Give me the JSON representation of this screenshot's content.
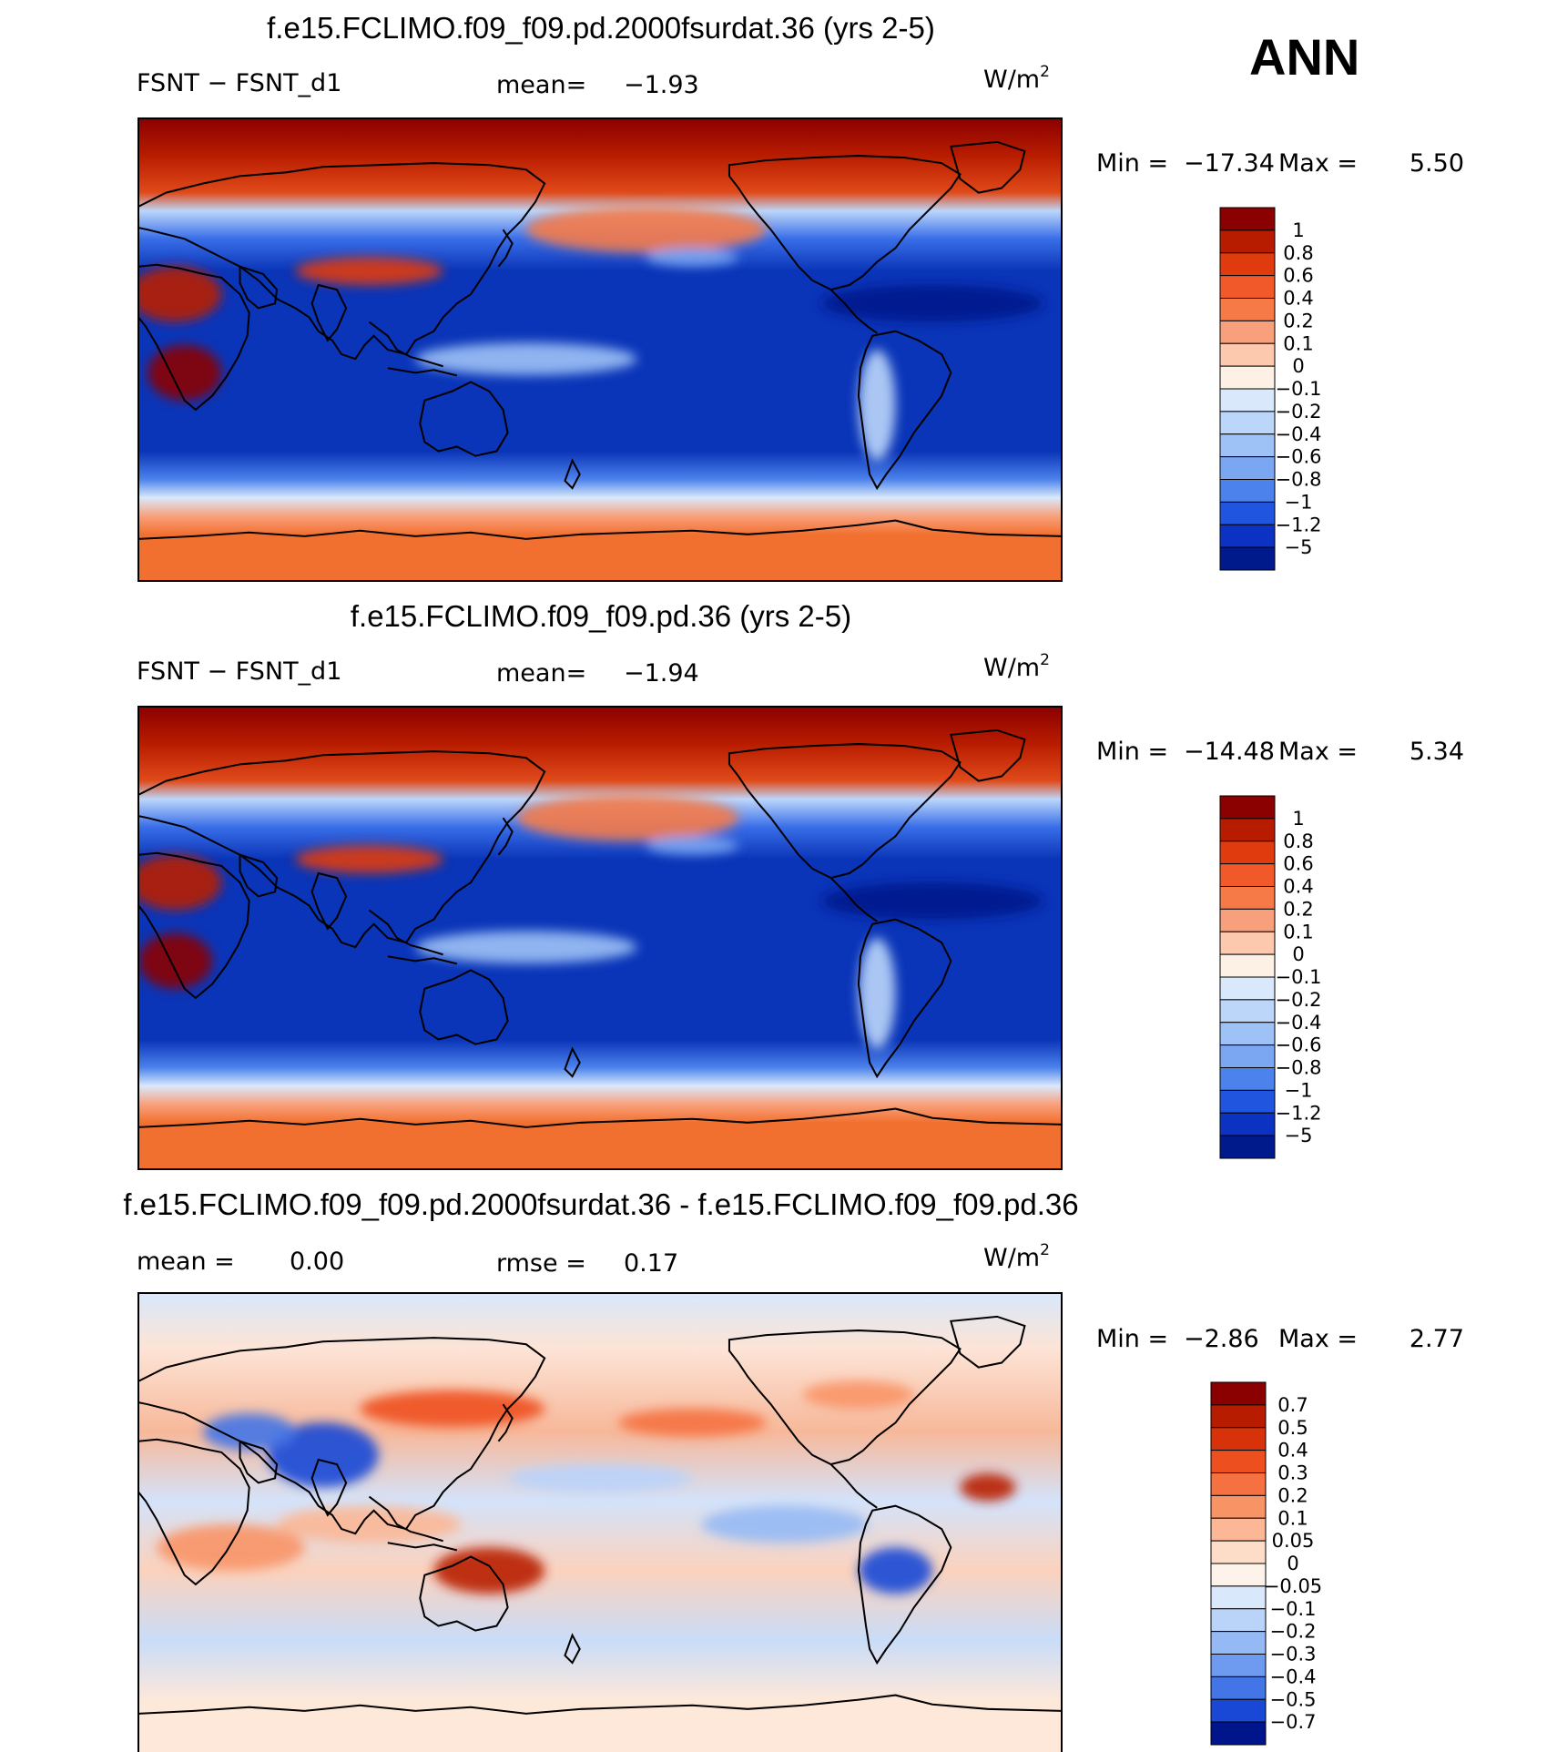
{
  "figure": {
    "season": "ANN"
  },
  "chart_data": [
    {
      "type": "heatmap",
      "title": "f.e15.FCLIMO.f09_f09.pd.2000fsurdat.36 (yrs 2-5)",
      "left_label": "FSNT − FSNT_d1",
      "stat_label": "mean=",
      "stat_value": "−1.93",
      "units": "W/m",
      "units_exp": "2",
      "min_label": "Min =",
      "min_value": "−17.34",
      "max_label": "Max =",
      "max_value": "5.50",
      "colorbar_levels": [
        "1",
        "0.8",
        "0.6",
        "0.4",
        "0.2",
        "0.1",
        "0",
        "−0.1",
        "−0.2",
        "−0.4",
        "−0.6",
        "−0.8",
        "−1",
        "−1.2",
        "−5"
      ],
      "colorbar_colors": [
        "#8b0000",
        "#b81c00",
        "#e03a0f",
        "#f2592a",
        "#f57a48",
        "#f8a07c",
        "#fcc9ae",
        "#fdf0e4",
        "#d9e8fb",
        "#bcd6fa",
        "#9ec2f6",
        "#7aa6f2",
        "#4c82ec",
        "#1f55df",
        "#0b32c2",
        "#001a8c"
      ],
      "ocean_color": "#0a35b8",
      "arctic_color": "#8b0000",
      "south_color": "#f2702f"
    },
    {
      "type": "heatmap",
      "title": "f.e15.FCLIMO.f09_f09.pd.36 (yrs 2-5)",
      "left_label": "FSNT − FSNT_d1",
      "stat_label": "mean=",
      "stat_value": "−1.94",
      "units": "W/m",
      "units_exp": "2",
      "min_label": "Min =",
      "min_value": "−14.48",
      "max_label": "Max =",
      "max_value": "5.34",
      "colorbar_levels": [
        "1",
        "0.8",
        "0.6",
        "0.4",
        "0.2",
        "0.1",
        "0",
        "−0.1",
        "−0.2",
        "−0.4",
        "−0.6",
        "−0.8",
        "−1",
        "−1.2",
        "−5"
      ],
      "colorbar_colors": [
        "#8b0000",
        "#b81c00",
        "#e03a0f",
        "#f2592a",
        "#f57a48",
        "#f8a07c",
        "#fcc9ae",
        "#fdf0e4",
        "#d9e8fb",
        "#bcd6fa",
        "#9ec2f6",
        "#7aa6f2",
        "#4c82ec",
        "#1f55df",
        "#0b32c2",
        "#001a8c"
      ],
      "ocean_color": "#0a35b8",
      "arctic_color": "#8b0000",
      "south_color": "#f2702f"
    },
    {
      "type": "heatmap",
      "title": "f.e15.FCLIMO.f09_f09.pd.2000fsurdat.36 - f.e15.FCLIMO.f09_f09.pd.36",
      "left_label": "mean =",
      "left_value": "0.00",
      "stat_label": "rmse =",
      "stat_value": "0.17",
      "units": "W/m",
      "units_exp": "2",
      "min_label": "Min =",
      "min_value": "−2.86",
      "max_label": "Max =",
      "max_value": "2.77",
      "colorbar_levels": [
        "0.7",
        "0.5",
        "0.4",
        "0.3",
        "0.2",
        "0.1",
        "0.05",
        "0",
        "−0.05",
        "−0.1",
        "−0.2",
        "−0.3",
        "−0.4",
        "−0.5",
        "−0.7"
      ],
      "colorbar_colors": [
        "#8b0000",
        "#b81c00",
        "#d8320b",
        "#ee4f1f",
        "#f57141",
        "#f89366",
        "#fbb796",
        "#fdddc8",
        "#fdf3ea",
        "#d9e8fb",
        "#b9d3f9",
        "#95b9f4",
        "#6e9bef",
        "#4375e7",
        "#1a48d6",
        "#00158c"
      ],
      "ocean_color": "#fce4d4",
      "arctic_color": "#d9e8fb",
      "south_color": "#fde8da"
    }
  ]
}
